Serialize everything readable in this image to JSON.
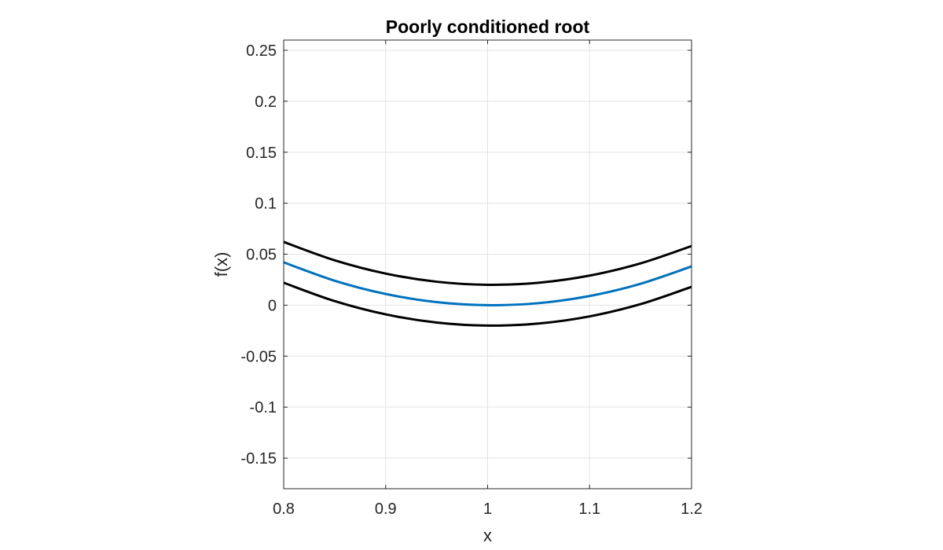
{
  "chart_data": {
    "type": "line",
    "title": "Poorly conditioned root",
    "xlabel": "x",
    "ylabel": "f(x)",
    "xlim": [
      0.8,
      1.2
    ],
    "ylim": [
      -0.18,
      0.26
    ],
    "xticks": [
      0.8,
      0.9,
      1.0,
      1.1,
      1.2
    ],
    "xtick_labels": [
      "0.8",
      "0.9",
      "1",
      "1.1",
      "1.2"
    ],
    "yticks": [
      -0.15,
      -0.1,
      -0.05,
      0,
      0.05,
      0.1,
      0.15,
      0.2,
      0.25
    ],
    "ytick_labels": [
      "-0.15",
      "-0.1",
      "-0.05",
      "0",
      "0.05",
      "0.1",
      "0.15",
      "0.2",
      "0.25"
    ],
    "grid": true,
    "series": [
      {
        "color": "#0072BD",
        "x": [
          0.8,
          0.85,
          0.9,
          0.95,
          1.0,
          1.05,
          1.1,
          1.15,
          1.2
        ],
        "y": [
          0.042,
          0.024,
          0.011,
          0.003,
          0.0,
          0.002,
          0.009,
          0.021,
          0.038
        ]
      },
      {
        "color": "#000000",
        "x": [
          0.8,
          0.85,
          0.9,
          0.95,
          1.0,
          1.05,
          1.1,
          1.15,
          1.2
        ],
        "y": [
          0.062,
          0.044,
          0.031,
          0.023,
          0.02,
          0.022,
          0.029,
          0.041,
          0.058
        ]
      },
      {
        "color": "#000000",
        "x": [
          0.8,
          0.85,
          0.9,
          0.95,
          1.0,
          1.05,
          1.1,
          1.15,
          1.2
        ],
        "y": [
          0.022,
          0.004,
          -0.009,
          -0.017,
          -0.02,
          -0.018,
          -0.011,
          0.001,
          0.018
        ]
      }
    ]
  }
}
